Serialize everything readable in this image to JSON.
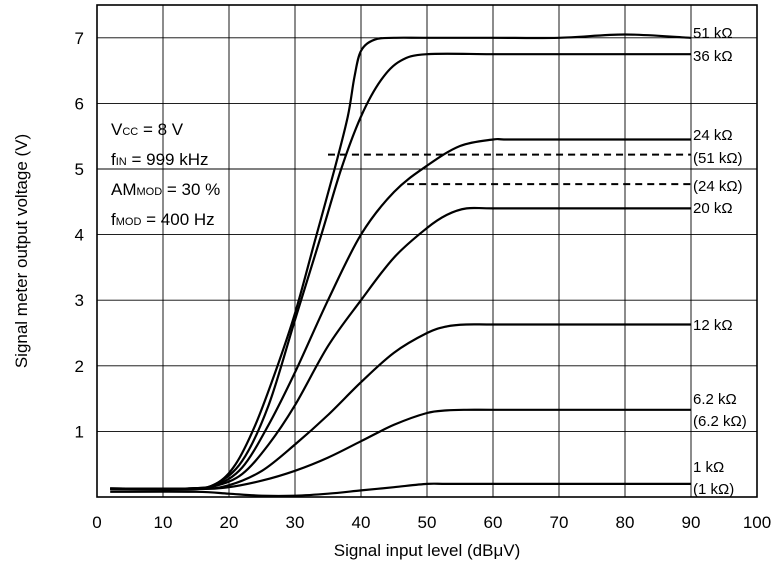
{
  "chart_data": {
    "type": "line",
    "xlabel": "Signal input level (dBμV)",
    "ylabel": "Signal meter output voltage (V)",
    "xlim": [
      0,
      100
    ],
    "ylim": [
      0,
      7.5
    ],
    "x_ticks": [
      "0",
      "10",
      "20",
      "30",
      "40",
      "50",
      "60",
      "70",
      "80",
      "90",
      "100"
    ],
    "y_ticks": [
      "1",
      "2",
      "3",
      "4",
      "5",
      "6",
      "7"
    ],
    "grid": true,
    "conditions": [
      {
        "main": "V",
        "sub": "CC",
        "rest": " = 8 V"
      },
      {
        "main": "f",
        "sub": "IN",
        "rest": " = 999 kHz"
      },
      {
        "main": "AM",
        "sub": "MOD",
        "rest": " = 30 %"
      },
      {
        "main": "f",
        "sub": "MOD",
        "rest": " = 400 Hz"
      }
    ],
    "series": [
      {
        "name": "51 kΩ",
        "style": "solid",
        "x": [
          2,
          14,
          18,
          21,
          24,
          27,
          30,
          33,
          36,
          38,
          39,
          40,
          42,
          45,
          50,
          60,
          70,
          80,
          90
        ],
        "y": [
          0.13,
          0.13,
          0.2,
          0.5,
          1.1,
          1.9,
          2.8,
          3.9,
          5.0,
          5.8,
          6.4,
          6.8,
          6.97,
          7.0,
          7.0,
          7.0,
          7.0,
          7.05,
          7.0
        ]
      },
      {
        "name": "36 kΩ",
        "style": "solid",
        "x": [
          2,
          14,
          18,
          22,
          26,
          30,
          34,
          37,
          40,
          43,
          46,
          50,
          60,
          70,
          80,
          90
        ],
        "y": [
          0.13,
          0.13,
          0.2,
          0.55,
          1.4,
          2.7,
          4.0,
          5.0,
          5.8,
          6.35,
          6.65,
          6.75,
          6.75,
          6.75,
          6.75,
          6.75
        ]
      },
      {
        "name": "24 kΩ",
        "style": "solid",
        "x": [
          2,
          14,
          18,
          22,
          26,
          30,
          35,
          40,
          45,
          50,
          55,
          60,
          62,
          70,
          80,
          90
        ],
        "y": [
          0.13,
          0.13,
          0.18,
          0.45,
          1.1,
          1.9,
          3.0,
          4.0,
          4.65,
          5.05,
          5.35,
          5.45,
          5.45,
          5.45,
          5.45,
          5.45
        ]
      },
      {
        "name": "(51 kΩ)",
        "style": "dashed",
        "x": [
          35,
          90
        ],
        "y": [
          5.22,
          5.22
        ]
      },
      {
        "name": "(24 kΩ)",
        "style": "dashed",
        "x": [
          47,
          90
        ],
        "y": [
          4.77,
          4.77
        ]
      },
      {
        "name": "20 kΩ",
        "style": "solid",
        "x": [
          2,
          14,
          18,
          22,
          26,
          30,
          35,
          40,
          45,
          50,
          53,
          56,
          60,
          70,
          80,
          90
        ],
        "y": [
          0.13,
          0.13,
          0.17,
          0.35,
          0.8,
          1.4,
          2.3,
          3.0,
          3.65,
          4.1,
          4.3,
          4.4,
          4.4,
          4.4,
          4.4,
          4.4
        ]
      },
      {
        "name": "12 kΩ",
        "style": "solid",
        "x": [
          2,
          15,
          20,
          25,
          30,
          35,
          40,
          45,
          50,
          53,
          56,
          60,
          70,
          80,
          90
        ],
        "y": [
          0.12,
          0.12,
          0.18,
          0.4,
          0.8,
          1.25,
          1.75,
          2.2,
          2.5,
          2.6,
          2.63,
          2.63,
          2.63,
          2.63,
          2.63
        ]
      },
      {
        "name": "6.2 kΩ",
        "style": "solid",
        "x": [
          2,
          15,
          20,
          25,
          30,
          35,
          40,
          45,
          50,
          53,
          56,
          60,
          70,
          80,
          90
        ],
        "y": [
          0.12,
          0.12,
          0.15,
          0.25,
          0.4,
          0.6,
          0.85,
          1.1,
          1.28,
          1.32,
          1.33,
          1.33,
          1.33,
          1.33,
          1.33
        ]
      },
      {
        "name": "(6.2 kΩ)",
        "style": "solid",
        "x": [],
        "y": []
      },
      {
        "name": "1 kΩ",
        "style": "solid",
        "x": [
          2,
          15,
          20,
          25,
          30,
          35,
          40,
          45,
          50,
          53,
          60,
          70,
          80,
          90
        ],
        "y": [
          0.08,
          0.08,
          0.05,
          0.02,
          0.02,
          0.05,
          0.1,
          0.15,
          0.2,
          0.2,
          0.2,
          0.2,
          0.2,
          0.2
        ]
      },
      {
        "name": "(1 kΩ)",
        "style": "solid",
        "x": [],
        "y": []
      }
    ]
  }
}
